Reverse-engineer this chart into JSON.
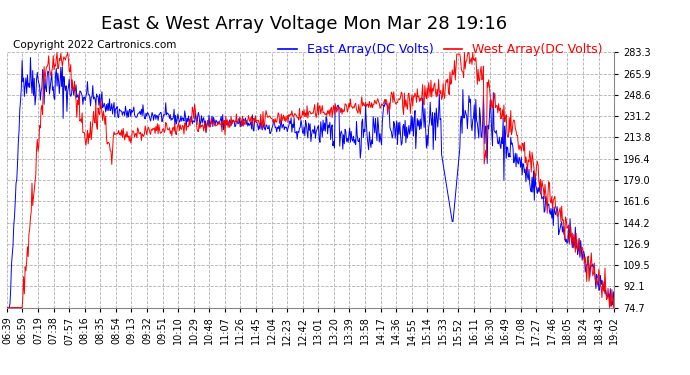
{
  "title": "East & West Array Voltage Mon Mar 28 19:16",
  "copyright": "Copyright 2022 Cartronics.com",
  "legend_east": "East Array(DC Volts)",
  "legend_west": "West Array(DC Volts)",
  "east_color": "#0000ff",
  "west_color": "#ff0000",
  "background_color": "#ffffff",
  "grid_color": "#b0b0b0",
  "ylim": [
    74.7,
    283.3
  ],
  "yticks": [
    74.7,
    92.1,
    109.5,
    126.9,
    144.2,
    161.6,
    179.0,
    196.4,
    213.8,
    231.2,
    248.6,
    265.9,
    283.3
  ],
  "xtick_labels": [
    "06:39",
    "06:59",
    "07:19",
    "07:38",
    "07:57",
    "08:16",
    "08:35",
    "08:54",
    "09:13",
    "09:32",
    "09:51",
    "10:10",
    "10:29",
    "10:48",
    "11:07",
    "11:26",
    "11:45",
    "12:04",
    "12:23",
    "12:42",
    "13:01",
    "13:20",
    "13:39",
    "13:58",
    "14:17",
    "14:36",
    "14:55",
    "15:14",
    "15:33",
    "15:52",
    "16:11",
    "16:30",
    "16:49",
    "17:08",
    "17:27",
    "17:46",
    "18:05",
    "18:24",
    "18:43",
    "19:02"
  ],
  "title_fontsize": 13,
  "tick_fontsize": 7,
  "copyright_fontsize": 7.5,
  "legend_fontsize": 9
}
